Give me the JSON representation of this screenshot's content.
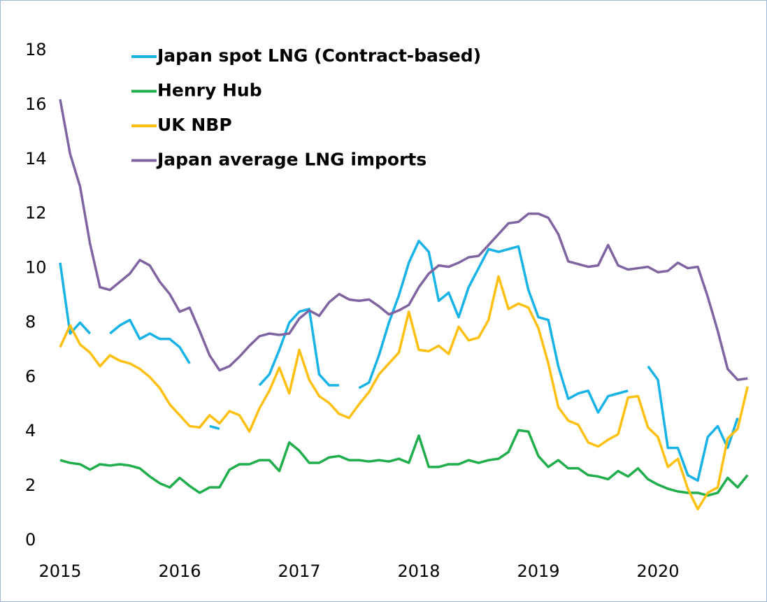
{
  "chart_data": {
    "type": "line",
    "categories": [
      "2015",
      null,
      null,
      null,
      null,
      null,
      null,
      null,
      null,
      null,
      null,
      null,
      "2016",
      null,
      null,
      null,
      null,
      null,
      null,
      null,
      null,
      null,
      null,
      null,
      "2017",
      null,
      null,
      null,
      null,
      null,
      null,
      null,
      null,
      null,
      null,
      null,
      "2018",
      null,
      null,
      null,
      null,
      null,
      null,
      null,
      null,
      null,
      null,
      null,
      "2019",
      null,
      null,
      null,
      null,
      null,
      null,
      null,
      null,
      null,
      null,
      null,
      "2020",
      null,
      null,
      null,
      null,
      null,
      null,
      null,
      null,
      null
    ],
    "series": [
      {
        "name": "Japan spot LNG (Contract-based)",
        "color": "#17b3e6",
        "values": [
          10.2,
          7.6,
          8.0,
          7.6,
          null,
          7.6,
          7.9,
          8.1,
          7.4,
          7.6,
          7.4,
          7.4,
          7.1,
          6.5,
          null,
          4.2,
          4.1,
          null,
          null,
          null,
          5.7,
          6.1,
          7.0,
          8.0,
          8.4,
          8.5,
          6.1,
          5.7,
          5.7,
          null,
          5.6,
          5.8,
          6.8,
          8.0,
          9.0,
          10.2,
          11.0,
          10.6,
          8.8,
          9.1,
          8.2,
          9.3,
          10.0,
          10.7,
          10.6,
          10.7,
          10.8,
          9.2,
          8.2,
          8.1,
          6.4,
          5.2,
          5.4,
          5.5,
          4.7,
          5.3,
          5.4,
          5.5,
          null,
          6.4,
          5.9,
          3.4,
          3.4,
          2.4,
          2.2,
          3.8,
          4.2,
          3.4,
          4.5,
          null
        ]
      },
      {
        "name": "Henry Hub",
        "color": "#1fae4b",
        "values": [
          2.95,
          2.85,
          2.8,
          2.6,
          2.8,
          2.75,
          2.8,
          2.75,
          2.65,
          2.35,
          2.1,
          1.95,
          2.3,
          2.0,
          1.75,
          1.95,
          1.95,
          2.6,
          2.8,
          2.8,
          2.95,
          2.95,
          2.55,
          3.6,
          3.3,
          2.85,
          2.85,
          3.05,
          3.1,
          2.95,
          2.95,
          2.9,
          2.95,
          2.9,
          3.0,
          2.85,
          3.85,
          2.7,
          2.7,
          2.8,
          2.8,
          2.95,
          2.85,
          2.95,
          3.0,
          3.25,
          4.05,
          4.0,
          3.1,
          2.7,
          2.95,
          2.65,
          2.65,
          2.4,
          2.35,
          2.25,
          2.55,
          2.35,
          2.65,
          2.25,
          2.05,
          1.9,
          1.8,
          1.75,
          1.75,
          1.65,
          1.75,
          2.3,
          1.95,
          2.4
        ]
      },
      {
        "name": "UK NBP",
        "color": "#fdc010",
        "values": [
          7.1,
          7.9,
          7.2,
          6.9,
          6.4,
          6.8,
          6.6,
          6.5,
          6.3,
          6.0,
          5.6,
          5.0,
          4.6,
          4.2,
          4.15,
          4.6,
          4.3,
          4.75,
          4.6,
          4.0,
          4.85,
          5.5,
          6.35,
          5.4,
          7.0,
          5.9,
          5.3,
          5.05,
          4.65,
          4.5,
          5.0,
          5.45,
          6.1,
          6.5,
          6.9,
          8.4,
          7.0,
          6.95,
          7.15,
          6.85,
          7.85,
          7.35,
          7.45,
          8.1,
          9.7,
          8.5,
          8.7,
          8.55,
          7.8,
          6.5,
          4.9,
          4.4,
          4.25,
          3.6,
          3.45,
          3.7,
          3.9,
          5.25,
          5.3,
          4.15,
          3.8,
          2.7,
          3.0,
          1.9,
          1.15,
          1.75,
          1.95,
          3.75,
          4.1,
          5.65
        ]
      },
      {
        "name": "Japan average LNG imports",
        "color": "#8064a2",
        "values": [
          16.2,
          14.2,
          13.0,
          10.9,
          9.3,
          9.2,
          9.5,
          9.8,
          10.3,
          10.1,
          9.5,
          9.05,
          8.4,
          8.55,
          7.7,
          6.8,
          6.25,
          6.4,
          6.75,
          7.15,
          7.5,
          7.6,
          7.55,
          7.6,
          8.15,
          8.45,
          8.25,
          8.75,
          9.05,
          8.85,
          8.8,
          8.85,
          8.6,
          8.3,
          8.45,
          8.65,
          9.3,
          9.8,
          10.1,
          10.05,
          10.2,
          10.4,
          10.45,
          10.85,
          11.25,
          11.65,
          11.7,
          12.0,
          12.0,
          11.85,
          11.25,
          10.25,
          10.15,
          10.05,
          10.1,
          10.85,
          10.1,
          9.95,
          10.0,
          10.05,
          9.85,
          9.9,
          10.2,
          10.0,
          10.05,
          8.95,
          7.7,
          6.3,
          5.9,
          5.95
        ]
      }
    ],
    "ylim": [
      0,
      18
    ],
    "yticks": [
      0,
      2,
      4,
      6,
      8,
      10,
      12,
      14,
      16,
      18
    ],
    "grid": false,
    "legend": "top-left"
  }
}
